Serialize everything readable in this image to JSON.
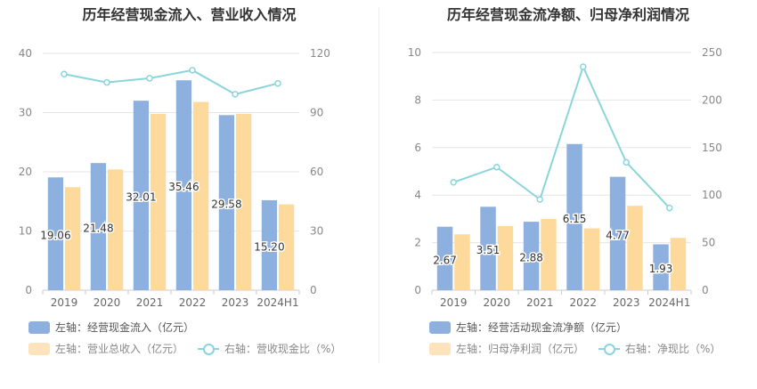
{
  "chart_data": [
    {
      "id": "left",
      "type": "bar",
      "title": "历年经营现金流入、营业收入情况",
      "categories": [
        "2019",
        "2020",
        "2021",
        "2022",
        "2023",
        "2024H1"
      ],
      "left_axis": {
        "ylim": [
          0,
          40
        ],
        "ticks": [
          "0",
          "10",
          "20",
          "30",
          "40"
        ]
      },
      "right_axis": {
        "ylim": [
          0,
          120
        ],
        "ticks": [
          "0",
          "30",
          "60",
          "90",
          "120"
        ]
      },
      "series": [
        {
          "name": "左轴：经营现金流入（亿元）",
          "axis": "left",
          "kind": "bar",
          "color": "#8eb0de",
          "values": [
            19.06,
            21.48,
            32.01,
            35.46,
            29.58,
            15.2
          ],
          "labels": [
            "19.06",
            "21.48",
            "32.01",
            "35.46",
            "29.58",
            "15.20"
          ]
        },
        {
          "name": "左轴：营业总收入（亿元）",
          "axis": "left",
          "kind": "bar",
          "color": "#fdd99b",
          "values": [
            17.4,
            20.4,
            29.8,
            31.8,
            29.8,
            14.5
          ]
        },
        {
          "name": "右轴：营收现金比（%）",
          "axis": "right",
          "kind": "line",
          "color": "#8ad5dc",
          "values": [
            109.5,
            105.3,
            107.4,
            111.5,
            99.3,
            104.8
          ]
        }
      ]
    },
    {
      "id": "right",
      "type": "bar",
      "title": "历年经营现金流净额、归母净利润情况",
      "categories": [
        "2019",
        "2020",
        "2021",
        "2022",
        "2023",
        "2024H1"
      ],
      "left_axis": {
        "ylim": [
          0,
          10
        ],
        "ticks": [
          "0",
          "2",
          "4",
          "6",
          "8",
          "10"
        ]
      },
      "right_axis": {
        "ylim": [
          0,
          250
        ],
        "ticks": [
          "0",
          "50",
          "100",
          "150",
          "200",
          "250"
        ]
      },
      "series": [
        {
          "name": "左轴：经营活动现金流净额（亿元）",
          "axis": "left",
          "kind": "bar",
          "color": "#8eb0de",
          "values": [
            2.67,
            3.51,
            2.88,
            6.15,
            4.77,
            1.93
          ],
          "labels": [
            "2.67",
            "3.51",
            "2.88",
            "6.15",
            "4.77",
            "1.93"
          ]
        },
        {
          "name": "左轴：归母净利润（亿元）",
          "axis": "left",
          "kind": "bar",
          "color": "#fdd99b",
          "values": [
            2.35,
            2.7,
            3.0,
            2.6,
            3.55,
            2.2
          ]
        },
        {
          "name": "右轴：净现比（%）",
          "axis": "right",
          "kind": "line",
          "color": "#8ad5dc",
          "values": [
            113.5,
            129.5,
            95.5,
            235.0,
            134.5,
            86.5
          ]
        }
      ]
    }
  ]
}
